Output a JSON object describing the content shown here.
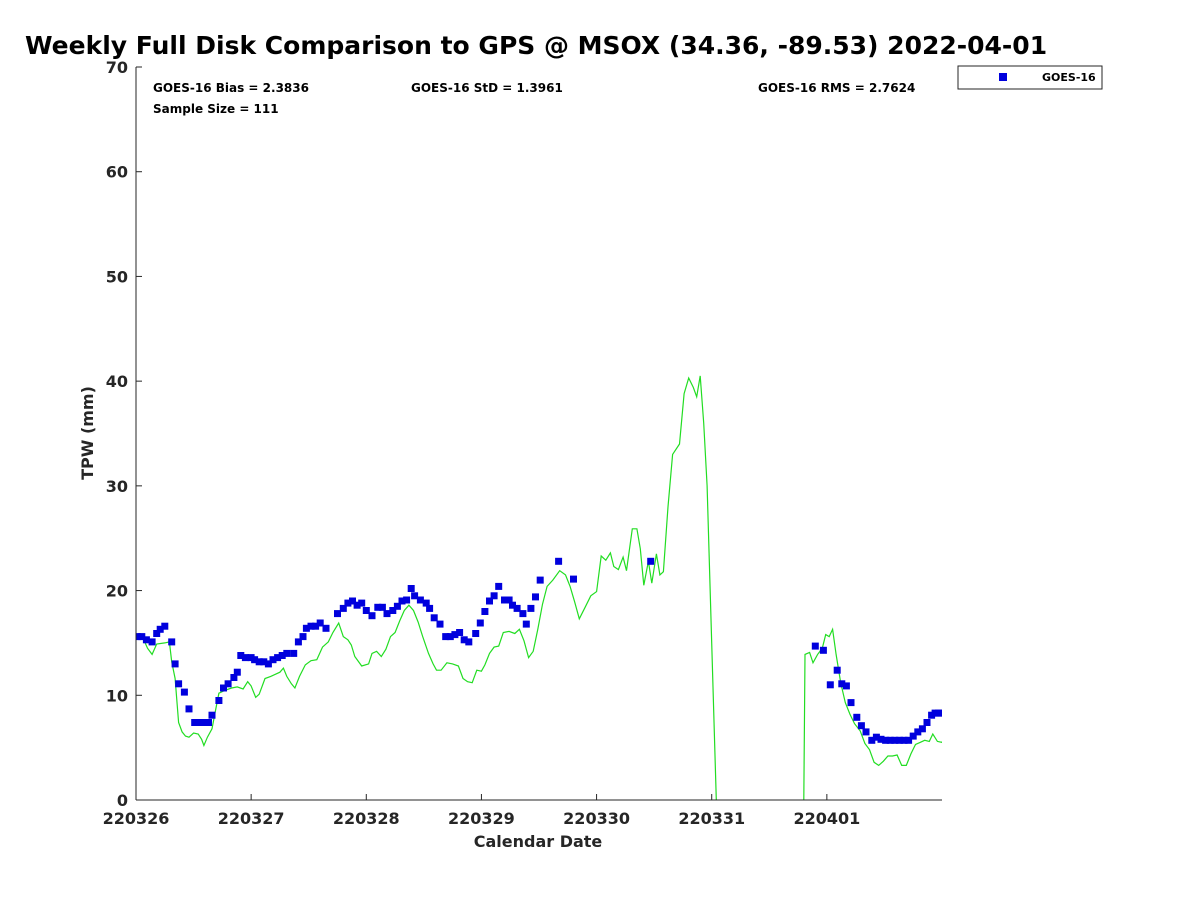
{
  "chart_data": {
    "type": "scatter",
    "title": "Weekly Full Disk Comparison to GPS @ MSOX (34.36, -89.53) 2022-04-01",
    "xlabel": "Calendar Date",
    "ylabel": "TPW (mm)",
    "xlim": [
      0,
      7
    ],
    "ylim": [
      0,
      70
    ],
    "x_ticks": [
      0,
      1,
      2,
      3,
      4,
      5,
      6
    ],
    "x_tick_labels": [
      "220326",
      "220327",
      "220328",
      "220329",
      "220330",
      "220331",
      "220401"
    ],
    "y_ticks": [
      0,
      10,
      20,
      30,
      40,
      50,
      60,
      70
    ],
    "y_tick_labels": [
      "0",
      "10",
      "20",
      "30",
      "40",
      "50",
      "60",
      "70"
    ],
    "grid": false,
    "legend_position": "top-right, outside plot",
    "stats": {
      "bias": "GOES-16 Bias = 2.3836",
      "std": "GOES-16 StD = 1.3961",
      "rms": "GOES-16 RMS = 2.7624",
      "sample": "Sample Size = 111"
    },
    "series": [
      {
        "name": "GOES-16",
        "kind": "scatter",
        "marker": "square",
        "color": "#0000dd",
        "points": [
          [
            0.01,
            15.6
          ],
          [
            0.05,
            15.6
          ],
          [
            0.09,
            15.3
          ],
          [
            0.14,
            15.1
          ],
          [
            0.18,
            15.9
          ],
          [
            0.21,
            16.3
          ],
          [
            0.25,
            16.6
          ],
          [
            0.31,
            15.1
          ],
          [
            0.34,
            13.0
          ],
          [
            0.37,
            11.1
          ],
          [
            0.42,
            10.3
          ],
          [
            0.46,
            8.7
          ],
          [
            0.51,
            7.4
          ],
          [
            0.55,
            7.4
          ],
          [
            0.59,
            7.4
          ],
          [
            0.63,
            7.4
          ],
          [
            0.66,
            8.1
          ],
          [
            0.72,
            9.5
          ],
          [
            0.76,
            10.7
          ],
          [
            0.8,
            11.1
          ],
          [
            0.85,
            11.7
          ],
          [
            0.88,
            12.2
          ],
          [
            0.91,
            13.8
          ],
          [
            0.95,
            13.6
          ],
          [
            1.0,
            13.6
          ],
          [
            1.03,
            13.4
          ],
          [
            1.07,
            13.2
          ],
          [
            1.11,
            13.2
          ],
          [
            1.15,
            13.0
          ],
          [
            1.19,
            13.4
          ],
          [
            1.23,
            13.6
          ],
          [
            1.27,
            13.8
          ],
          [
            1.31,
            14.0
          ],
          [
            1.37,
            14.0
          ],
          [
            1.41,
            15.1
          ],
          [
            1.45,
            15.6
          ],
          [
            1.48,
            16.4
          ],
          [
            1.52,
            16.6
          ],
          [
            1.56,
            16.6
          ],
          [
            1.6,
            16.9
          ],
          [
            1.65,
            16.4
          ],
          [
            1.75,
            17.8
          ],
          [
            1.8,
            18.3
          ],
          [
            1.84,
            18.8
          ],
          [
            1.88,
            19.0
          ],
          [
            1.92,
            18.6
          ],
          [
            1.96,
            18.8
          ],
          [
            2.0,
            18.1
          ],
          [
            2.05,
            17.6
          ],
          [
            2.1,
            18.4
          ],
          [
            2.14,
            18.4
          ],
          [
            2.18,
            17.8
          ],
          [
            2.23,
            18.1
          ],
          [
            2.27,
            18.5
          ],
          [
            2.31,
            19.0
          ],
          [
            2.35,
            19.1
          ],
          [
            2.39,
            20.2
          ],
          [
            2.42,
            19.5
          ],
          [
            2.47,
            19.1
          ],
          [
            2.52,
            18.8
          ],
          [
            2.55,
            18.3
          ],
          [
            2.59,
            17.4
          ],
          [
            2.64,
            16.8
          ],
          [
            2.69,
            15.6
          ],
          [
            2.73,
            15.6
          ],
          [
            2.77,
            15.8
          ],
          [
            2.81,
            16.0
          ],
          [
            2.85,
            15.3
          ],
          [
            2.89,
            15.1
          ],
          [
            2.95,
            15.9
          ],
          [
            2.99,
            16.9
          ],
          [
            3.03,
            18.0
          ],
          [
            3.07,
            19.0
          ],
          [
            3.11,
            19.5
          ],
          [
            3.15,
            20.4
          ],
          [
            3.2,
            19.1
          ],
          [
            3.24,
            19.1
          ],
          [
            3.27,
            18.6
          ],
          [
            3.31,
            18.3
          ],
          [
            3.36,
            17.8
          ],
          [
            3.39,
            16.8
          ],
          [
            3.43,
            18.3
          ],
          [
            3.47,
            19.4
          ],
          [
            3.51,
            21.0
          ],
          [
            3.67,
            22.8
          ],
          [
            3.8,
            21.1
          ],
          [
            4.47,
            22.8
          ],
          [
            5.9,
            14.7
          ],
          [
            5.97,
            14.3
          ],
          [
            6.03,
            11.0
          ],
          [
            6.09,
            12.4
          ],
          [
            6.13,
            11.1
          ],
          [
            6.17,
            10.9
          ],
          [
            6.21,
            9.3
          ],
          [
            6.26,
            7.9
          ],
          [
            6.3,
            7.1
          ],
          [
            6.34,
            6.5
          ],
          [
            6.39,
            5.7
          ],
          [
            6.43,
            6.0
          ],
          [
            6.47,
            5.8
          ],
          [
            6.51,
            5.7
          ],
          [
            6.55,
            5.7
          ],
          [
            6.59,
            5.7
          ],
          [
            6.63,
            5.7
          ],
          [
            6.67,
            5.7
          ],
          [
            6.71,
            5.7
          ],
          [
            6.75,
            6.1
          ],
          [
            6.79,
            6.5
          ],
          [
            6.83,
            6.8
          ],
          [
            6.87,
            7.4
          ],
          [
            6.91,
            8.1
          ],
          [
            6.94,
            8.3
          ],
          [
            6.97,
            8.3
          ],
          [
            7.0,
            8.3
          ]
        ]
      },
      {
        "kind": "line",
        "color": "#22dd22",
        "points": [
          [
            0.0,
            15.6
          ],
          [
            0.06,
            15.5
          ],
          [
            0.1,
            14.5
          ],
          [
            0.14,
            13.9
          ],
          [
            0.18,
            14.9
          ],
          [
            0.25,
            15.0
          ],
          [
            0.29,
            15.1
          ],
          [
            0.31,
            13.2
          ],
          [
            0.34,
            11.6
          ],
          [
            0.37,
            7.4
          ],
          [
            0.4,
            6.5
          ],
          [
            0.43,
            6.1
          ],
          [
            0.46,
            6.0
          ],
          [
            0.5,
            6.4
          ],
          [
            0.54,
            6.3
          ],
          [
            0.57,
            5.8
          ],
          [
            0.59,
            5.2
          ],
          [
            0.62,
            6.0
          ],
          [
            0.66,
            6.8
          ],
          [
            0.69,
            8.5
          ],
          [
            0.72,
            10.2
          ],
          [
            0.78,
            10.5
          ],
          [
            0.83,
            10.7
          ],
          [
            0.88,
            10.8
          ],
          [
            0.93,
            10.6
          ],
          [
            0.97,
            11.3
          ],
          [
            1.0,
            10.9
          ],
          [
            1.04,
            9.8
          ],
          [
            1.07,
            10.1
          ],
          [
            1.12,
            11.6
          ],
          [
            1.17,
            11.8
          ],
          [
            1.21,
            12.0
          ],
          [
            1.25,
            12.2
          ],
          [
            1.28,
            12.6
          ],
          [
            1.31,
            11.8
          ],
          [
            1.35,
            11.1
          ],
          [
            1.38,
            10.7
          ],
          [
            1.42,
            11.8
          ],
          [
            1.47,
            12.9
          ],
          [
            1.52,
            13.3
          ],
          [
            1.57,
            13.4
          ],
          [
            1.62,
            14.6
          ],
          [
            1.67,
            15.1
          ],
          [
            1.71,
            16.0
          ],
          [
            1.76,
            16.9
          ],
          [
            1.8,
            15.6
          ],
          [
            1.84,
            15.3
          ],
          [
            1.87,
            14.8
          ],
          [
            1.9,
            13.7
          ],
          [
            1.96,
            12.8
          ],
          [
            2.02,
            13.0
          ],
          [
            2.05,
            14.0
          ],
          [
            2.09,
            14.2
          ],
          [
            2.13,
            13.7
          ],
          [
            2.17,
            14.4
          ],
          [
            2.21,
            15.6
          ],
          [
            2.25,
            16.0
          ],
          [
            2.29,
            17.1
          ],
          [
            2.33,
            18.1
          ],
          [
            2.37,
            18.6
          ],
          [
            2.41,
            18.1
          ],
          [
            2.45,
            17.0
          ],
          [
            2.49,
            15.6
          ],
          [
            2.54,
            14.0
          ],
          [
            2.58,
            13.0
          ],
          [
            2.61,
            12.4
          ],
          [
            2.65,
            12.4
          ],
          [
            2.7,
            13.1
          ],
          [
            2.75,
            13.0
          ],
          [
            2.8,
            12.8
          ],
          [
            2.84,
            11.6
          ],
          [
            2.88,
            11.3
          ],
          [
            2.92,
            11.2
          ],
          [
            2.96,
            12.4
          ],
          [
            3.0,
            12.3
          ],
          [
            3.03,
            12.9
          ],
          [
            3.07,
            14.0
          ],
          [
            3.11,
            14.6
          ],
          [
            3.15,
            14.7
          ],
          [
            3.19,
            16.0
          ],
          [
            3.24,
            16.1
          ],
          [
            3.29,
            15.9
          ],
          [
            3.33,
            16.3
          ],
          [
            3.37,
            15.2
          ],
          [
            3.41,
            13.6
          ],
          [
            3.45,
            14.2
          ],
          [
            3.49,
            16.3
          ],
          [
            3.53,
            18.7
          ],
          [
            3.57,
            20.4
          ],
          [
            3.62,
            21.0
          ],
          [
            3.68,
            21.9
          ],
          [
            3.73,
            21.5
          ],
          [
            3.77,
            20.4
          ],
          [
            3.81,
            18.9
          ],
          [
            3.85,
            17.3
          ],
          [
            3.9,
            18.4
          ],
          [
            3.95,
            19.5
          ],
          [
            4.0,
            19.9
          ],
          [
            4.04,
            23.3
          ],
          [
            4.08,
            22.9
          ],
          [
            4.12,
            23.6
          ],
          [
            4.15,
            22.3
          ],
          [
            4.19,
            22.0
          ],
          [
            4.23,
            23.2
          ],
          [
            4.26,
            21.9
          ],
          [
            4.31,
            25.9
          ],
          [
            4.35,
            25.9
          ],
          [
            4.38,
            24.0
          ],
          [
            4.41,
            20.5
          ],
          [
            4.45,
            22.8
          ],
          [
            4.48,
            20.7
          ],
          [
            4.52,
            23.5
          ],
          [
            4.55,
            21.5
          ],
          [
            4.58,
            21.8
          ],
          [
            4.62,
            28.0
          ],
          [
            4.66,
            33.0
          ],
          [
            4.72,
            34.0
          ],
          [
            4.76,
            38.8
          ],
          [
            4.8,
            40.3
          ],
          [
            4.84,
            39.4
          ],
          [
            4.87,
            38.5
          ],
          [
            4.9,
            40.5
          ],
          [
            4.93,
            36.0
          ],
          [
            4.96,
            30.0
          ],
          [
            5.0,
            15.0
          ],
          [
            5.04,
            0.0
          ]
        ]
      },
      {
        "kind": "line",
        "color": "#22dd22",
        "points": [
          [
            5.8,
            0.0
          ],
          [
            5.81,
            13.9
          ],
          [
            5.85,
            14.1
          ],
          [
            5.88,
            13.1
          ],
          [
            5.92,
            13.9
          ],
          [
            5.96,
            14.5
          ],
          [
            5.99,
            15.8
          ],
          [
            6.02,
            15.6
          ],
          [
            6.05,
            16.3
          ],
          [
            6.08,
            13.9
          ],
          [
            6.12,
            11.2
          ],
          [
            6.16,
            9.3
          ],
          [
            6.2,
            8.2
          ],
          [
            6.24,
            7.3
          ],
          [
            6.29,
            6.6
          ],
          [
            6.33,
            5.4
          ],
          [
            6.37,
            4.8
          ],
          [
            6.41,
            3.6
          ],
          [
            6.45,
            3.3
          ],
          [
            6.49,
            3.7
          ],
          [
            6.53,
            4.2
          ],
          [
            6.57,
            4.2
          ],
          [
            6.61,
            4.3
          ],
          [
            6.65,
            3.3
          ],
          [
            6.69,
            3.3
          ],
          [
            6.73,
            4.4
          ],
          [
            6.77,
            5.3
          ],
          [
            6.81,
            5.5
          ],
          [
            6.85,
            5.7
          ],
          [
            6.89,
            5.6
          ],
          [
            6.92,
            6.3
          ],
          [
            6.96,
            5.6
          ],
          [
            7.0,
            5.5
          ],
          [
            7.04,
            6.4
          ],
          [
            7.08,
            6.7
          ]
        ]
      }
    ]
  }
}
